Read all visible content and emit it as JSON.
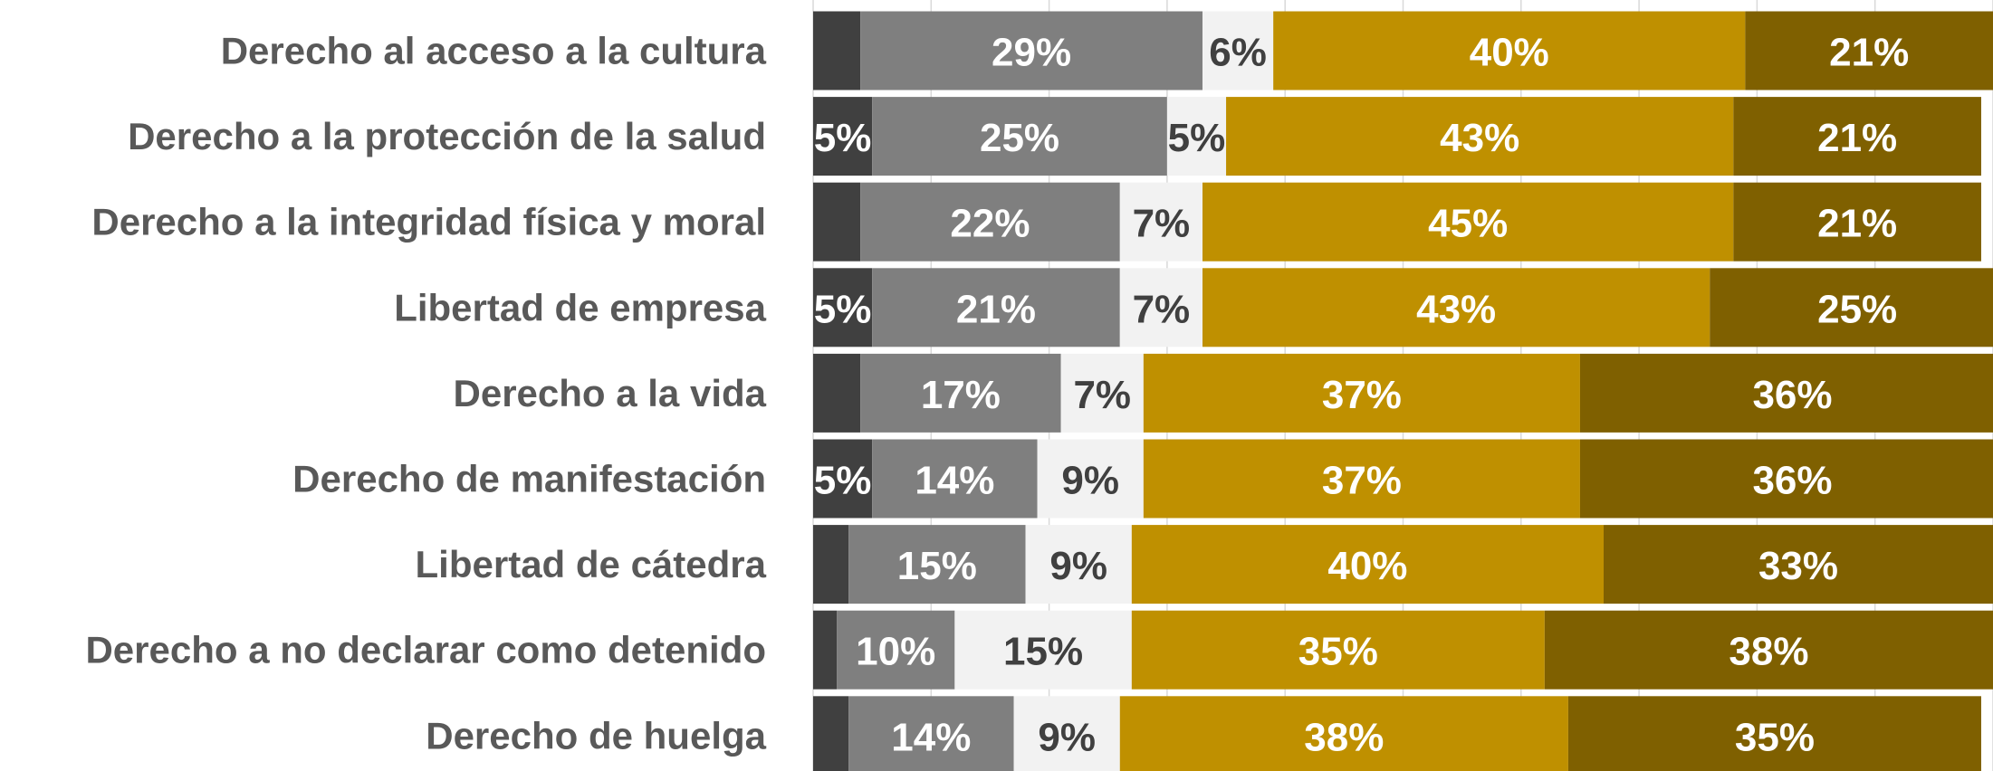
{
  "chart_data": {
    "type": "stacked_barh",
    "categories": [
      "Derecho al acceso a la cultura",
      "Derecho a la protección de la salud",
      "Derecho a la integridad física y moral",
      "Libertad de empresa",
      "Derecho a la vida",
      "Derecho de manifestación",
      "Libertad de cátedra",
      "Derecho a no declarar como detenido",
      "Derecho de huelga"
    ],
    "series": [
      {
        "color": "#404040",
        "values": [
          4,
          5,
          4,
          5,
          4,
          5,
          3,
          2,
          3
        ],
        "value_labels": [
          null,
          "5%",
          null,
          "5%",
          null,
          "5%",
          null,
          null,
          null
        ]
      },
      {
        "color": "#7f7f7f",
        "values": [
          29,
          25,
          22,
          21,
          17,
          14,
          15,
          10,
          14
        ],
        "value_labels": [
          "29%",
          "25%",
          "22%",
          "21%",
          "17%",
          "14%",
          "15%",
          "10%",
          "14%"
        ]
      },
      {
        "color": "#f2f2f2",
        "values": [
          6,
          5,
          7,
          7,
          7,
          9,
          9,
          15,
          9
        ],
        "value_labels": [
          "6%",
          "5%",
          "7%",
          "7%",
          "7%",
          "9%",
          "9%",
          "15%",
          "9%"
        ]
      },
      {
        "color": "#bf9000",
        "values": [
          40,
          43,
          45,
          43,
          37,
          37,
          40,
          35,
          38
        ],
        "value_labels": [
          "40%",
          "43%",
          "45%",
          "43%",
          "37%",
          "37%",
          "40%",
          "35%",
          "38%"
        ]
      },
      {
        "color": "#7f6000",
        "values": [
          21,
          21,
          21,
          25,
          36,
          36,
          33,
          38,
          35
        ],
        "value_labels": [
          "21%",
          "21%",
          "21%",
          "25%",
          "36%",
          "36%",
          "33%",
          "38%",
          "35%"
        ]
      }
    ],
    "xlim": [
      0,
      100
    ],
    "xticks": [
      0,
      10,
      20,
      30,
      40,
      50,
      60,
      70,
      80,
      90,
      100
    ],
    "grid": true
  }
}
